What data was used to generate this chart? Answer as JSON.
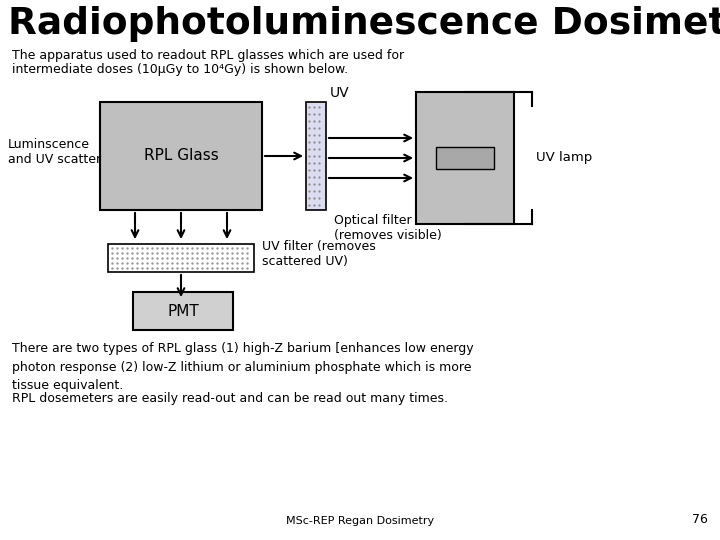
{
  "title": "Radiophotoluminescence Dosimetry",
  "subtitle_line1": "The apparatus used to readout RPL glasses which are used for",
  "subtitle_line2": "intermediate doses (10μGy to 10⁴Gy) is shown below.",
  "rpl_glass_label": "RPL Glass",
  "uv_label": "UV",
  "uv_lamp_label": "UV lamp",
  "optical_filter_label": "Optical filter\n(removes visible)",
  "luminscence_label": "Luminscence\nand UV scatter",
  "uv_filter_label": "UV filter (removes\nscattered UV)",
  "pmt_label": "PMT",
  "body_text1": "There are two types of RPL glass (1) high-Z barium [enhances low energy\nphoton response (2) low-Z lithium or aluminium phosphate which is more\ntissue equivalent.",
  "body_text2": "RPL dosemeters are easily read-out and can be read out many times.",
  "footer": "MSc-REP Regan Dosimetry",
  "page_number": "76",
  "bg_color": "#ffffff",
  "box_gray": "#bfbfbf",
  "box_light_gray": "#d0d0d0",
  "text_color": "#000000",
  "filter_color": "#dcdcf0"
}
